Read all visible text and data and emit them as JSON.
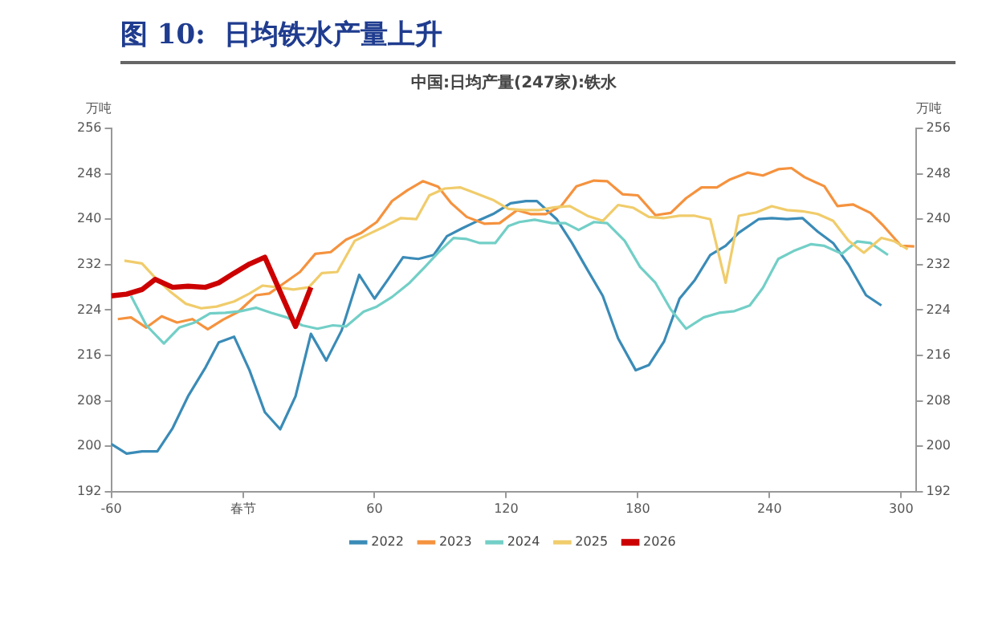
{
  "chart_data": {
    "type": "line",
    "title": "图 10:  日均铁水产量上升",
    "subtitle": "中国:日均产量(247家):铁水",
    "ylabel": "万吨",
    "y2label": "万吨",
    "xlim": [
      -60,
      307
    ],
    "xticks": [
      -60,
      {
        "value": 0,
        "label": "春节"
      },
      60,
      120,
      180,
      240,
      300
    ],
    "ylim": [
      192,
      256
    ],
    "yticks": [
      192,
      200,
      208,
      216,
      224,
      232,
      240,
      248,
      256
    ],
    "y2lim": [
      192,
      256
    ],
    "y2ticks": [
      192,
      200,
      208,
      216,
      224,
      232,
      240,
      248,
      256
    ],
    "legend": "bottom",
    "marker": "none",
    "line_style": "solid",
    "series": [
      {
        "name": "2022",
        "color": "#3a8bb7",
        "x": [
          -60,
          -53,
          -46,
          -39,
          -32,
          -25,
          -17,
          -11,
          -4,
          3,
          10,
          17,
          24,
          31,
          38,
          45,
          53,
          60,
          66,
          73,
          80,
          87,
          93,
          100,
          107,
          114,
          122,
          129,
          134,
          143,
          150,
          157,
          164,
          171,
          179,
          185,
          192,
          199,
          206,
          213,
          220,
          226,
          235,
          241,
          248,
          255,
          262,
          269,
          276,
          284,
          291
        ],
        "values": [
          200.4,
          198.7,
          199.1,
          199.1,
          203.2,
          208.8,
          213.9,
          218.3,
          219.3,
          213.4,
          206,
          203,
          208.8,
          219.8,
          215.1,
          220.4,
          230.2,
          226,
          229.3,
          233.3,
          233,
          233.7,
          237,
          238.4,
          239.7,
          240.9,
          242.8,
          243.2,
          243.2,
          240,
          235.8,
          231.1,
          226.5,
          219,
          213.4,
          214.3,
          218.5,
          226,
          229.3,
          233.7,
          235.3,
          237.6,
          240,
          240.2,
          240,
          240.2,
          237.8,
          235.8,
          232,
          226.6,
          224.8
        ]
      },
      {
        "name": "2023",
        "color": "#f5923e",
        "x": [
          -57,
          -51,
          -44,
          -37,
          -30,
          -23,
          -16,
          -9,
          -2,
          6,
          12,
          19,
          26,
          33,
          40,
          47,
          54,
          61,
          68,
          75,
          82,
          89,
          95,
          102,
          110,
          117,
          125,
          131,
          138,
          145,
          152,
          160,
          166,
          173,
          180,
          188,
          195,
          202,
          209,
          216,
          222,
          230,
          237,
          244,
          250,
          256,
          265,
          271,
          278,
          286,
          292,
          300,
          306
        ],
        "values": [
          222.4,
          222.7,
          220.9,
          222.9,
          221.8,
          222.4,
          220.6,
          222.3,
          223.7,
          226.6,
          226.9,
          228.8,
          230.7,
          233.9,
          234.2,
          236.4,
          237.6,
          239.5,
          243.2,
          245.1,
          246.7,
          245.7,
          242.8,
          240.4,
          239.2,
          239.3,
          241.6,
          240.9,
          240.9,
          242.3,
          245.8,
          246.8,
          246.7,
          244.4,
          244.2,
          240.7,
          241.1,
          243.7,
          245.6,
          245.6,
          247,
          248.2,
          247.7,
          248.8,
          249,
          247.4,
          245.8,
          242.3,
          242.6,
          241.1,
          238.8,
          235.3,
          235.2
        ]
      },
      {
        "name": "2024",
        "color": "#72cfc7",
        "x": [
          -51,
          -44,
          -36,
          -29,
          -22,
          -15,
          -8,
          -1,
          6,
          13,
          20,
          27,
          34,
          41,
          47,
          55,
          61,
          68,
          76,
          83,
          89,
          96,
          102,
          108,
          115,
          121,
          126,
          133,
          141,
          147,
          153,
          160,
          166,
          174,
          181,
          188,
          195,
          202,
          210,
          217,
          224,
          231,
          237,
          244,
          251,
          259,
          265,
          273,
          280,
          286,
          294
        ],
        "values": [
          226.5,
          221.3,
          218.1,
          220.9,
          221.8,
          223.4,
          223.5,
          223.8,
          224.4,
          223.5,
          222.7,
          221.3,
          220.7,
          221.3,
          221.1,
          223.7,
          224.6,
          226.3,
          228.8,
          231.6,
          234.1,
          236.7,
          236.5,
          235.8,
          235.8,
          238.8,
          239.5,
          239.9,
          239.3,
          239.3,
          238.1,
          239.5,
          239.3,
          236.2,
          231.6,
          228.8,
          224.1,
          220.7,
          222.7,
          223.5,
          223.8,
          224.8,
          227.9,
          233,
          234.4,
          235.6,
          235.3,
          233.9,
          236.1,
          235.8,
          233.7
        ]
      },
      {
        "name": "2025",
        "color": "#f0cc6b",
        "x": [
          -54,
          -46,
          -40,
          -33,
          -26,
          -19,
          -12,
          -4,
          3,
          9,
          16,
          23,
          30,
          36,
          43,
          51,
          58,
          65,
          72,
          79,
          85,
          92,
          99,
          106,
          114,
          121,
          128,
          135,
          142,
          149,
          157,
          164,
          171,
          178,
          185,
          192,
          199,
          206,
          213,
          220,
          226,
          234,
          241,
          248,
          255,
          262,
          269,
          276,
          283,
          291,
          297,
          303
        ],
        "values": [
          232.7,
          232.2,
          229.7,
          227.2,
          225.1,
          224.3,
          224.6,
          225.5,
          226.9,
          228.3,
          228,
          227.6,
          228,
          230.5,
          230.7,
          236.2,
          237.5,
          238.8,
          240.2,
          240,
          244.2,
          245.4,
          245.6,
          244.6,
          243.4,
          241.8,
          241.6,
          241.6,
          242.1,
          242.3,
          240.6,
          239.7,
          242.5,
          242,
          240.4,
          240.2,
          240.6,
          240.6,
          240,
          228.8,
          240.6,
          241.2,
          242.3,
          241.6,
          241.4,
          240.9,
          239.7,
          236.2,
          234.1,
          236.7,
          236.1,
          234.7
        ]
      },
      {
        "name": "2026",
        "color": "#cc0000",
        "x": [
          -60,
          -53,
          -46,
          -40,
          -32,
          -25,
          -17,
          -11,
          -4,
          3,
          10,
          24,
          31
        ],
        "values": [
          226.5,
          226.8,
          227.6,
          229.4,
          228,
          228.2,
          228,
          228.8,
          230.5,
          232.1,
          233.3,
          221.1,
          228
        ]
      }
    ]
  }
}
